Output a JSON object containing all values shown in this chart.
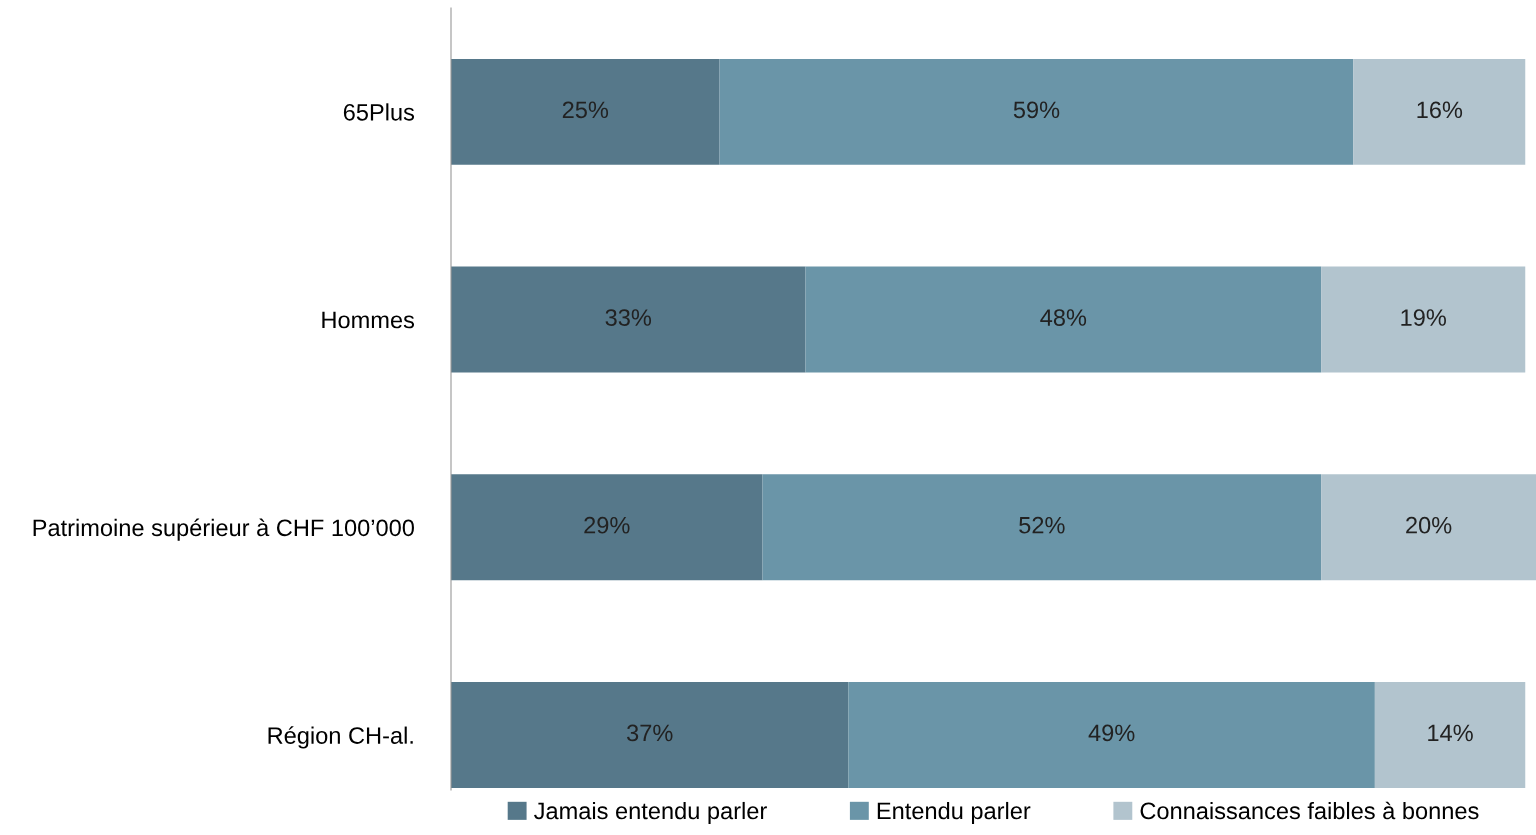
{
  "chart_data": {
    "type": "bar",
    "orientation": "horizontal",
    "stacked": true,
    "legend": "bottom",
    "grid": false,
    "categories": [
      "65Plus",
      "Hommes",
      "Patrimoine supérieur à CHF 100’000",
      "Région CH-al."
    ],
    "series": [
      {
        "name": "Jamais entendu parler",
        "color": "#56788a",
        "values": [
          25,
          33,
          29,
          37
        ],
        "value_labels": [
          "25%",
          "33%",
          "29%",
          "37%"
        ]
      },
      {
        "name": "Entendu parler",
        "color": "#6a95a8",
        "values": [
          59,
          48,
          52,
          49
        ],
        "value_labels": [
          "59%",
          "48%",
          "52%",
          "49%"
        ]
      },
      {
        "name": "Connaissances faibles à bonnes",
        "color": "#b2c4ce",
        "values": [
          16,
          19,
          20,
          14
        ],
        "value_labels": [
          "16%",
          "19%",
          "20%",
          "14%"
        ]
      }
    ]
  }
}
